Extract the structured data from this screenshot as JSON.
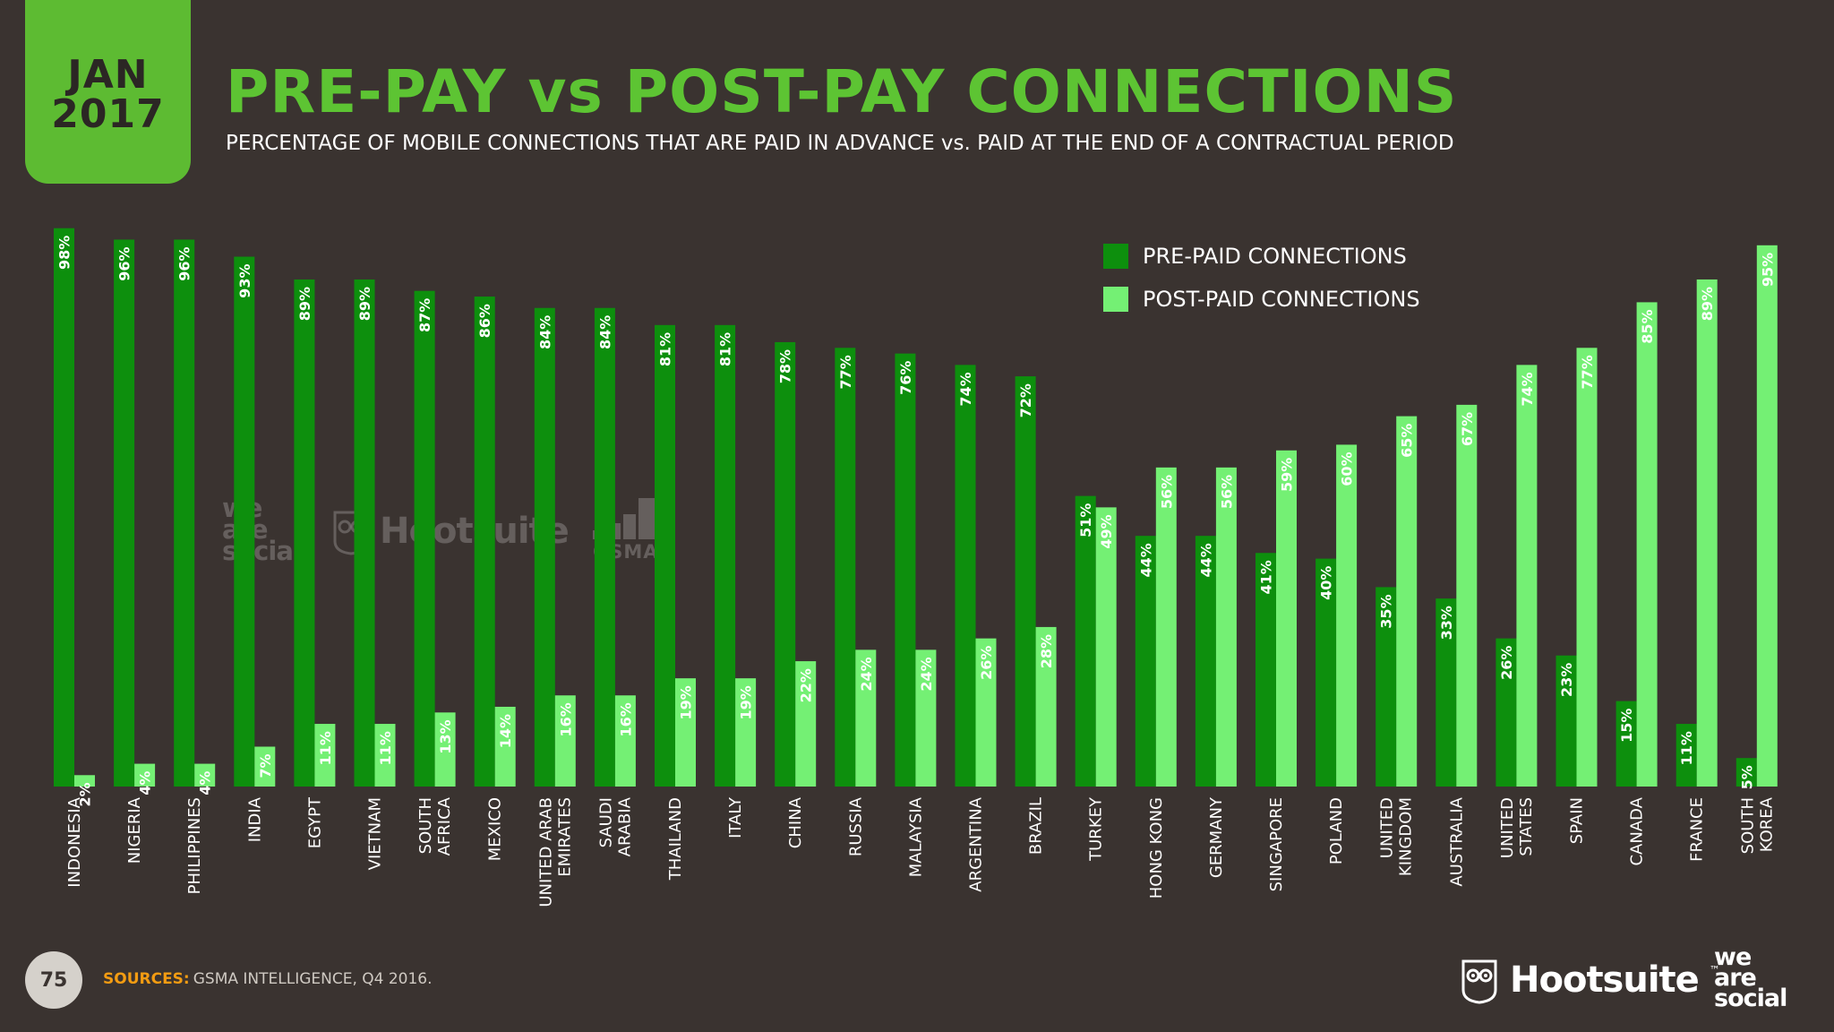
{
  "header": {
    "date_line1": "JAN",
    "date_line2": "2017",
    "title": "PRE-PAY vs POST-PAY CONNECTIONS",
    "subtitle": "PERCENTAGE OF MOBILE CONNECTIONS THAT ARE PAID IN ADVANCE vs. PAID AT THE END OF A CONTRACTUAL PERIOD"
  },
  "colors": {
    "background": "#3a3330",
    "date_box": "#5dbb32",
    "title": "#5dc433",
    "prepaid": "#0d8f0d",
    "postpaid": "#74f074",
    "sources_label": "#f39c12"
  },
  "chart_data": {
    "type": "bar",
    "title": "PRE-PAY vs POST-PAY CONNECTIONS",
    "xlabel": "",
    "ylabel": "",
    "ylim": [
      0,
      100
    ],
    "grid": false,
    "legend_position": "top-right",
    "categories": [
      "INDONESIA",
      "NIGERIA",
      "PHILIPPINES",
      "INDIA",
      "EGYPT",
      "VIETNAM",
      "SOUTH AFRICA",
      "MEXICO",
      "UNITED ARAB EMIRATES",
      "SAUDI ARABIA",
      "THAILAND",
      "ITALY",
      "CHINA",
      "RUSSIA",
      "MALAYSIA",
      "ARGENTINA",
      "BRAZIL",
      "TURKEY",
      "HONG KONG",
      "GERMANY",
      "SINGAPORE",
      "POLAND",
      "UNITED KINGDOM",
      "AUSTRALIA",
      "UNITED STATES",
      "SPAIN",
      "CANADA",
      "FRANCE",
      "SOUTH KOREA"
    ],
    "category_lines": [
      [
        "INDONESIA"
      ],
      [
        "NIGERIA"
      ],
      [
        "PHILIPPINES"
      ],
      [
        "INDIA"
      ],
      [
        "EGYPT"
      ],
      [
        "VIETNAM"
      ],
      [
        "SOUTH",
        "AFRICA"
      ],
      [
        "MEXICO"
      ],
      [
        "UNITED ARAB",
        "EMIRATES"
      ],
      [
        "SAUDI",
        "ARABIA"
      ],
      [
        "THAILAND"
      ],
      [
        "ITALY"
      ],
      [
        "CHINA"
      ],
      [
        "RUSSIA"
      ],
      [
        "MALAYSIA"
      ],
      [
        "ARGENTINA"
      ],
      [
        "BRAZIL"
      ],
      [
        "TURKEY"
      ],
      [
        "HONG KONG"
      ],
      [
        "GERMANY"
      ],
      [
        "SINGAPORE"
      ],
      [
        "POLAND"
      ],
      [
        "UNITED",
        "KINGDOM"
      ],
      [
        "AUSTRALIA"
      ],
      [
        "UNITED",
        "STATES"
      ],
      [
        "SPAIN"
      ],
      [
        "CANADA"
      ],
      [
        "FRANCE"
      ],
      [
        "SOUTH",
        "KOREA"
      ]
    ],
    "series": [
      {
        "name": "PRE-PAID CONNECTIONS",
        "color": "#0d8f0d",
        "values": [
          98,
          96,
          96,
          93,
          89,
          89,
          87,
          86,
          84,
          84,
          81,
          81,
          78,
          77,
          76,
          74,
          72,
          51,
          44,
          44,
          41,
          40,
          35,
          33,
          26,
          23,
          15,
          11,
          5
        ]
      },
      {
        "name": "POST-PAID CONNECTIONS",
        "color": "#74f074",
        "values": [
          2,
          4,
          4,
          7,
          11,
          11,
          13,
          14,
          16,
          16,
          19,
          19,
          22,
          24,
          24,
          26,
          28,
          49,
          56,
          56,
          59,
          60,
          65,
          67,
          74,
          77,
          85,
          89,
          95
        ]
      }
    ]
  },
  "footer": {
    "page_number": "75",
    "sources_label": "SOURCES:",
    "sources_text": "GSMA INTELLIGENCE, Q4 2016.",
    "hootsuite": "Hootsuite",
    "tm": "™",
    "wearesocial_1": "we",
    "wearesocial_2": "are",
    "wearesocial_3": "social",
    "gsma": "GSMA"
  }
}
